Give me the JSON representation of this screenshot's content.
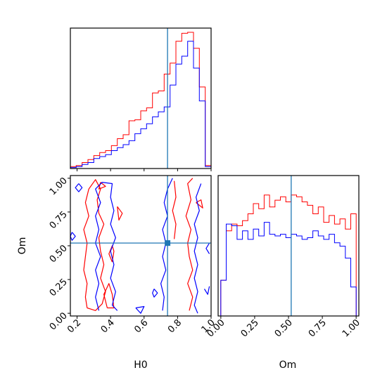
{
  "chart_data": [
    {
      "type": "histogram",
      "panel": "H0 marginal",
      "xlim": [
        0.16,
        1.0
      ],
      "truth_line": 0.74,
      "colors": {
        "series_a": "#ff0000",
        "series_b": "#0000ff",
        "truth": "#1f77b4"
      },
      "bins": [
        0.16,
        0.195,
        0.23,
        0.265,
        0.3,
        0.335,
        0.37,
        0.405,
        0.44,
        0.475,
        0.51,
        0.545,
        0.58,
        0.615,
        0.65,
        0.685,
        0.72,
        0.755,
        0.79,
        0.825,
        0.86,
        0.895,
        0.93,
        0.965,
        1.0
      ],
      "series": [
        {
          "values": [
            2,
            3,
            6,
            9,
            13,
            16,
            18,
            23,
            30,
            34,
            48,
            49,
            58,
            61,
            76,
            78,
            95,
            106,
            128,
            136,
            137,
            121,
            82,
            3
          ]
        },
        {
          "values": [
            1,
            2,
            4,
            6,
            10,
            12,
            14,
            18,
            21,
            24,
            28,
            35,
            40,
            45,
            52,
            57,
            62,
            84,
            105,
            113,
            128,
            101,
            68,
            2
          ]
        }
      ]
    },
    {
      "type": "contour",
      "panel": "Om vs H0",
      "xlabel": "H0",
      "ylabel": "Om",
      "xlim": [
        0.16,
        1.0
      ],
      "ylim": [
        -0.02,
        1.02
      ],
      "xticks": [
        "0.2",
        "0.4",
        "0.6",
        "0.8",
        "1.0"
      ],
      "yticks": [
        "0.00",
        "0.25",
        "0.50",
        "0.75",
        "1.00"
      ],
      "truth_point": {
        "x": 0.74,
        "y": 0.52
      },
      "colors": {
        "series_a": "#ff0000",
        "series_b": "#0000ff",
        "truth": "#1f77b4"
      },
      "series": [
        {
          "contours": [
            [
              [
                0.26,
                0.04
              ],
              [
                0.25,
                0.12
              ],
              [
                0.26,
                0.22
              ],
              [
                0.24,
                0.32
              ],
              [
                0.25,
                0.42
              ],
              [
                0.26,
                0.52
              ],
              [
                0.24,
                0.62
              ],
              [
                0.27,
                0.72
              ],
              [
                0.25,
                0.82
              ],
              [
                0.27,
                0.92
              ],
              [
                0.31,
                0.99
              ],
              [
                0.34,
                0.92
              ],
              [
                0.32,
                0.84
              ],
              [
                0.33,
                0.74
              ],
              [
                0.36,
                0.66
              ],
              [
                0.33,
                0.56
              ],
              [
                0.34,
                0.46
              ],
              [
                0.36,
                0.36
              ],
              [
                0.34,
                0.26
              ],
              [
                0.37,
                0.16
              ],
              [
                0.35,
                0.07
              ],
              [
                0.31,
                0.02
              ],
              [
                0.26,
                0.04
              ]
            ],
            [
              [
                0.38,
                0.04
              ],
              [
                0.36,
                0.14
              ],
              [
                0.39,
                0.22
              ],
              [
                0.41,
                0.14
              ],
              [
                0.42,
                0.04
              ],
              [
                0.38,
                0.04
              ]
            ],
            [
              [
                0.87,
                0.02
              ],
              [
                0.89,
                0.12
              ],
              [
                0.86,
                0.22
              ],
              [
                0.89,
                0.32
              ],
              [
                0.87,
                0.42
              ],
              [
                0.86,
                0.52
              ],
              [
                0.88,
                0.62
              ],
              [
                0.85,
                0.72
              ],
              [
                0.88,
                0.84
              ],
              [
                0.86,
                0.96
              ],
              [
                0.89,
                1.0
              ]
            ],
            [
              [
                0.78,
                0.98
              ],
              [
                0.79,
                0.86
              ],
              [
                0.77,
                0.76
              ],
              [
                0.79,
                0.66
              ],
              [
                0.78,
                0.55
              ]
            ],
            [
              [
                0.41,
                0.38
              ],
              [
                0.42,
                0.46
              ],
              [
                0.41,
                0.5
              ],
              [
                0.39,
                0.44
              ],
              [
                0.41,
                0.38
              ]
            ],
            [
              [
                0.34,
                0.97
              ],
              [
                0.37,
                0.94
              ],
              [
                0.33,
                0.92
              ],
              [
                0.34,
                0.97
              ]
            ],
            [
              [
                0.91,
                0.82
              ],
              [
                0.95,
                0.78
              ],
              [
                0.94,
                0.84
              ],
              [
                0.91,
                0.82
              ]
            ],
            [
              [
                0.44,
                0.79
              ],
              [
                0.47,
                0.74
              ],
              [
                0.45,
                0.69
              ],
              [
                0.44,
                0.79
              ]
            ]
          ]
        },
        {
          "contours": [
            [
              [
                0.33,
                0.02
              ],
              [
                0.31,
                0.12
              ],
              [
                0.33,
                0.22
              ],
              [
                0.31,
                0.32
              ],
              [
                0.34,
                0.42
              ],
              [
                0.31,
                0.52
              ],
              [
                0.33,
                0.62
              ],
              [
                0.31,
                0.72
              ],
              [
                0.34,
                0.82
              ],
              [
                0.31,
                0.92
              ],
              [
                0.35,
                0.97
              ],
              [
                0.41,
                0.96
              ],
              [
                0.4,
                0.86
              ],
              [
                0.42,
                0.76
              ],
              [
                0.4,
                0.66
              ],
              [
                0.43,
                0.56
              ],
              [
                0.4,
                0.46
              ],
              [
                0.42,
                0.36
              ],
              [
                0.4,
                0.26
              ],
              [
                0.43,
                0.16
              ],
              [
                0.41,
                0.06
              ],
              [
                0.44,
                0.02
              ]
            ],
            [
              [
                0.71,
                0.02
              ],
              [
                0.72,
                0.12
              ],
              [
                0.7,
                0.22
              ],
              [
                0.73,
                0.32
              ],
              [
                0.71,
                0.42
              ],
              [
                0.73,
                0.52
              ],
              [
                0.71,
                0.62
              ],
              [
                0.74,
                0.72
              ],
              [
                0.72,
                0.82
              ],
              [
                0.74,
                0.92
              ],
              [
                0.77,
                1.0
              ]
            ],
            [
              [
                0.94,
                0.96
              ],
              [
                0.91,
                0.86
              ],
              [
                0.93,
                0.76
              ],
              [
                0.9,
                0.66
              ],
              [
                0.92,
                0.56
              ],
              [
                0.9,
                0.46
              ],
              [
                0.92,
                0.36
              ],
              [
                0.9,
                0.26
              ],
              [
                0.92,
                0.16
              ],
              [
                0.9,
                0.06
              ],
              [
                0.92,
                0.0
              ]
            ],
            [
              [
                0.21,
                0.96
              ],
              [
                0.23,
                0.93
              ],
              [
                0.21,
                0.9
              ],
              [
                0.19,
                0.93
              ],
              [
                0.21,
                0.96
              ]
            ],
            [
              [
                0.17,
                0.6
              ],
              [
                0.19,
                0.57
              ],
              [
                0.17,
                0.54
              ],
              [
                0.16,
                0.57
              ],
              [
                0.17,
                0.6
              ]
            ],
            [
              [
                0.99,
                0.52
              ],
              [
                0.97,
                0.48
              ],
              [
                0.99,
                0.44
              ]
            ],
            [
              [
                0.55,
                0.04
              ],
              [
                0.58,
                0.0
              ],
              [
                0.6,
                0.05
              ],
              [
                0.55,
                0.04
              ]
            ],
            [
              [
                0.66,
                0.18
              ],
              [
                0.68,
                0.15
              ],
              [
                0.66,
                0.12
              ],
              [
                0.65,
                0.15
              ],
              [
                0.66,
                0.18
              ]
            ],
            [
              [
                0.96,
                0.18
              ],
              [
                0.98,
                0.14
              ],
              [
                0.99,
                0.2
              ]
            ]
          ]
        }
      ]
    },
    {
      "type": "histogram",
      "panel": "Om marginal",
      "xlabel": "Om",
      "xlim": [
        -0.02,
        1.02
      ],
      "xticks": [
        "0.00",
        "0.25",
        "0.50",
        "0.75",
        "1.00"
      ],
      "truth_line": 0.52,
      "colors": {
        "series_a": "#ff0000",
        "series_b": "#0000ff",
        "truth": "#1f77b4"
      },
      "bins": [
        0.0,
        0.04,
        0.08,
        0.12,
        0.16,
        0.2,
        0.24,
        0.28,
        0.32,
        0.36,
        0.4,
        0.44,
        0.48,
        0.52,
        0.56,
        0.6,
        0.64,
        0.68,
        0.72,
        0.76,
        0.8,
        0.84,
        0.88,
        0.92,
        0.96,
        1.0
      ],
      "series": [
        {
          "values": [
            42,
            100,
            108,
            106,
            112,
            120,
            132,
            126,
            142,
            128,
            136,
            140,
            134,
            142,
            140,
            134,
            130,
            120,
            128,
            110,
            118,
            108,
            114,
            102,
            120
          ]
        },
        {
          "values": [
            42,
            108,
            106,
            90,
            100,
            90,
            102,
            94,
            110,
            96,
            94,
            96,
            92,
            96,
            94,
            90,
            92,
            100,
            94,
            90,
            96,
            86,
            82,
            68,
            34
          ]
        }
      ]
    }
  ]
}
